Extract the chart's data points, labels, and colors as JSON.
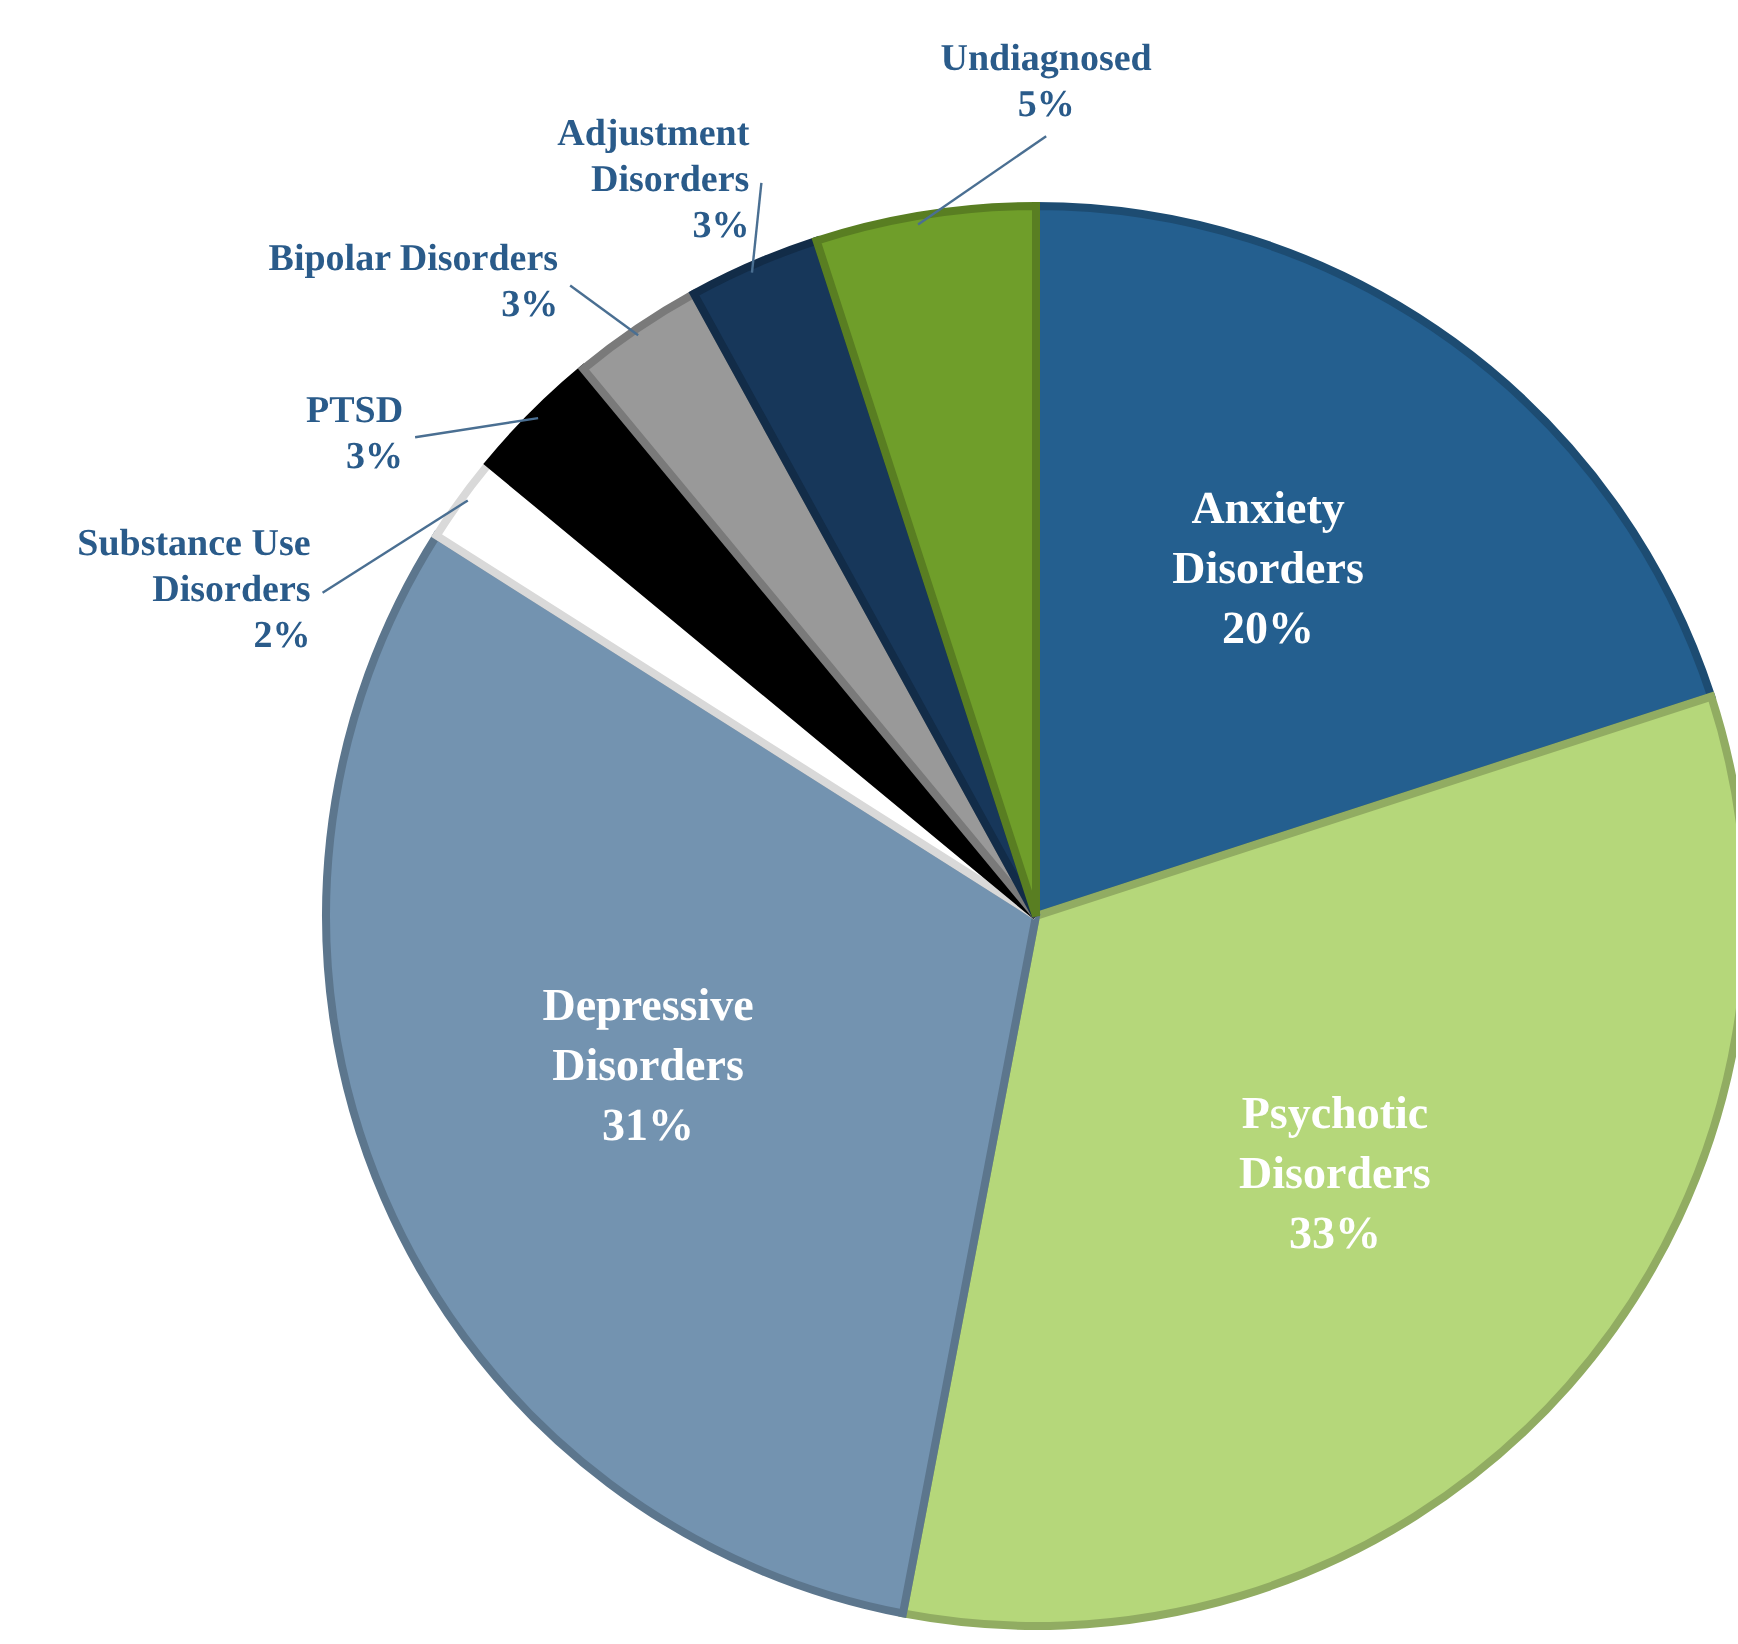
{
  "chart_data": {
    "type": "pie",
    "categories": [
      "Anxiety Disorders",
      "Psychotic Disorders",
      "Depressive Disorders",
      "Substance Use Disorders",
      "PTSD",
      "Bipolar Disorders",
      "Adjustment Disorders",
      "Undiagnosed"
    ],
    "values": [
      20,
      33,
      31,
      2,
      3,
      3,
      3,
      5
    ],
    "value_labels": [
      "20%",
      "33%",
      "31%",
      "2%",
      "3%",
      "3%",
      "3%",
      "5%"
    ],
    "colors": [
      "#245f8f",
      "#b5d77a",
      "#7393b0",
      "#ffffff",
      "#000000",
      "#999999",
      "#17375a",
      "#6f9e2a"
    ]
  }
}
